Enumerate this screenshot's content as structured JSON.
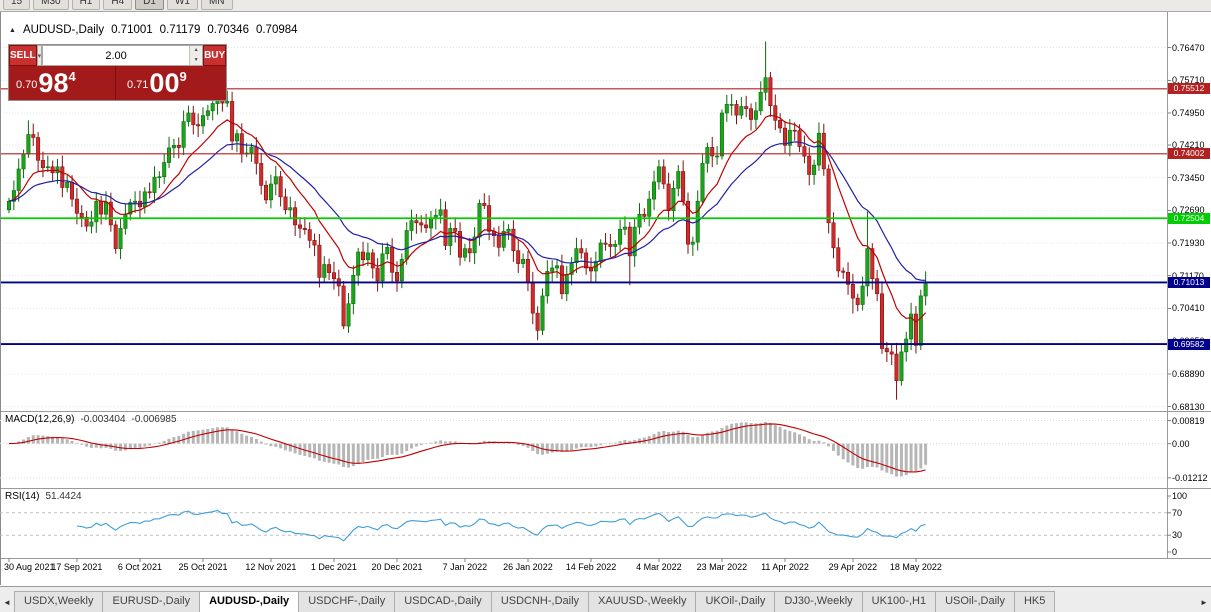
{
  "toolbar": {
    "timeframes": [
      "15",
      "M30",
      "H1",
      "H4",
      "D1",
      "W1",
      "MN"
    ],
    "active": "D1"
  },
  "icons": {
    "scroll_left": "◄",
    "scroll_right": "►",
    "chevron_down": "▾",
    "spin_up": "▲",
    "spin_down": "▼",
    "collapse": "▲"
  },
  "chart": {
    "symbol": "AUDUSD-,Daily",
    "ohlc": {
      "open": "0.71001",
      "high": "0.71179",
      "low": "0.70346",
      "close": "0.70984"
    },
    "price_axis_labels": [
      "0.76470",
      "0.75710",
      "0.74950",
      "0.74210",
      "0.73450",
      "0.72690",
      "0.71930",
      "0.71170",
      "0.70410",
      "0.69650",
      "0.68890",
      "0.68130"
    ],
    "hlines": [
      {
        "price": 0.75512,
        "label": "0.75512",
        "color": "#B22222"
      },
      {
        "price": 0.74002,
        "label": "0.74002",
        "color": "#B22222"
      },
      {
        "price": 0.72504,
        "label": "0.72504",
        "color": "#00CE00"
      },
      {
        "price": 0.71013,
        "label": "0.71013",
        "color": "#00008B"
      },
      {
        "price": 0.69582,
        "label": "0.69582",
        "color": "#00008B"
      }
    ]
  },
  "trade": {
    "sell_label": "SELL",
    "buy_label": "BUY",
    "volume": "2.00",
    "sell_price": {
      "prefix": "0.70",
      "big": "98",
      "sup": "4"
    },
    "buy_price": {
      "prefix": "0.71",
      "big": "00",
      "sup": "9"
    }
  },
  "indicators": {
    "macd": {
      "name": "MACD(12,26,9)",
      "value_main": "-0.003404",
      "value_signal": "-0.006985",
      "axis_labels": [
        "0.00819",
        "0.00",
        "-0.01212"
      ],
      "fast": 12,
      "slow": 26,
      "signal": 9
    },
    "rsi": {
      "name": "RSI(14)",
      "value": "51.4424",
      "axis_labels": [
        "100",
        "70",
        "30",
        "0"
      ],
      "levels": [
        70,
        30
      ],
      "period": 14
    }
  },
  "chart_data": {
    "type": "candlestick",
    "title": "AUDUSD-,Daily",
    "ylim": [
      0.6805,
      0.7725
    ],
    "x_labels": [
      "30 Aug 2021",
      "17 Sep 2021",
      "6 Oct 2021",
      "25 Oct 2021",
      "12 Nov 2021",
      "1 Dec 2021",
      "20 Dec 2021",
      "7 Jan 2022",
      "26 Jan 2022",
      "14 Feb 2022",
      "4 Mar 2022",
      "23 Mar 2022",
      "11 Apr 2022",
      "29 Apr 2022",
      "18 May 2022"
    ],
    "x_label_indices": [
      0,
      14,
      27,
      40,
      54,
      67,
      80,
      94,
      107,
      120,
      134,
      147,
      160,
      174,
      187
    ],
    "open_first": 0.727,
    "ma_periods": {
      "fast": 12,
      "slow": 26
    },
    "close": [
      0.729,
      0.7315,
      0.7365,
      0.74,
      0.7445,
      0.7438,
      0.7385,
      0.7368,
      0.737,
      0.7356,
      0.737,
      0.7322,
      0.7334,
      0.7295,
      0.7262,
      0.7253,
      0.7232,
      0.7242,
      0.729,
      0.726,
      0.7288,
      0.7235,
      0.718,
      0.7227,
      0.726,
      0.7287,
      0.729,
      0.7277,
      0.7312,
      0.731,
      0.7346,
      0.7347,
      0.738,
      0.7414,
      0.742,
      0.7415,
      0.7475,
      0.7495,
      0.7468,
      0.7465,
      0.7489,
      0.75,
      0.7517,
      0.7542,
      0.7518,
      0.7522,
      0.743,
      0.7447,
      0.74,
      0.7402,
      0.7416,
      0.7378,
      0.7327,
      0.7293,
      0.733,
      0.7347,
      0.73,
      0.727,
      0.7275,
      0.7235,
      0.7227,
      0.7224,
      0.7199,
      0.7188,
      0.7113,
      0.7143,
      0.7124,
      0.711,
      0.7093,
      0.7,
      0.7052,
      0.7118,
      0.7172,
      0.7154,
      0.717,
      0.7135,
      0.7105,
      0.7168,
      0.7183,
      0.7125,
      0.7105,
      0.7155,
      0.7222,
      0.7245,
      0.724,
      0.7235,
      0.7228,
      0.725,
      0.7257,
      0.727,
      0.7187,
      0.7227,
      0.722,
      0.716,
      0.718,
      0.717,
      0.7207,
      0.7285,
      0.728,
      0.722,
      0.721,
      0.7183,
      0.722,
      0.7225,
      0.7175,
      0.7145,
      0.7155,
      0.71,
      0.703,
      0.699,
      0.707,
      0.7127,
      0.7135,
      0.714,
      0.7075,
      0.712,
      0.7147,
      0.718,
      0.717,
      0.7135,
      0.7128,
      0.715,
      0.7193,
      0.719,
      0.7185,
      0.719,
      0.7225,
      0.723,
      0.7163,
      0.723,
      0.726,
      0.7255,
      0.7295,
      0.7335,
      0.737,
      0.733,
      0.7268,
      0.732,
      0.7359,
      0.729,
      0.719,
      0.7195,
      0.729,
      0.7378,
      0.7415,
      0.7395,
      0.7395,
      0.7495,
      0.7515,
      0.7515,
      0.749,
      0.751,
      0.7505,
      0.748,
      0.75,
      0.7543,
      0.7577,
      0.7512,
      0.7478,
      0.746,
      0.742,
      0.7455,
      0.7454,
      0.7417,
      0.7395,
      0.7352,
      0.7374,
      0.7448,
      0.7365,
      0.724,
      0.7182,
      0.7128,
      0.7125,
      0.7097,
      0.7065,
      0.705,
      0.7093,
      0.718,
      0.711,
      0.7075,
      0.6948,
      0.694,
      0.6935,
      0.6873,
      0.694,
      0.697,
      0.7028,
      0.6955,
      0.707,
      0.7098
    ],
    "high_overrides": {
      "4": 0.7478,
      "43": 0.7556,
      "148": 0.7537,
      "156": 0.7661,
      "157": 0.759,
      "177": 0.7266,
      "189": 0.7127
    },
    "low_overrides": {
      "22": 0.7168,
      "69": 0.6993,
      "109": 0.6967,
      "128": 0.7095,
      "141": 0.7163,
      "174": 0.7029,
      "183": 0.6829
    }
  },
  "tabs": {
    "items": [
      "USDX,Weekly",
      "EURUSD-,Daily",
      "AUDUSD-,Daily",
      "USDCHF-,Daily",
      "USDCAD-,Daily",
      "USDCNH-,Daily",
      "XAUUSD-,Weekly",
      "UKOil-,Daily",
      "DJ30-,Weekly",
      "UK100-,H1",
      "USOil-,Daily",
      "HK5"
    ],
    "active_index": 2
  },
  "colors": {
    "up": "#1CA41C",
    "up_border": "#0B6B0B",
    "down": "#D22B2B",
    "down_border": "#7E1111",
    "ma_fast": "#C00000",
    "ma_slow": "#2020A8",
    "macd_hist": "#B6B6B6",
    "macd_signal": "#C00000",
    "rsi": "#3E9FD8"
  }
}
